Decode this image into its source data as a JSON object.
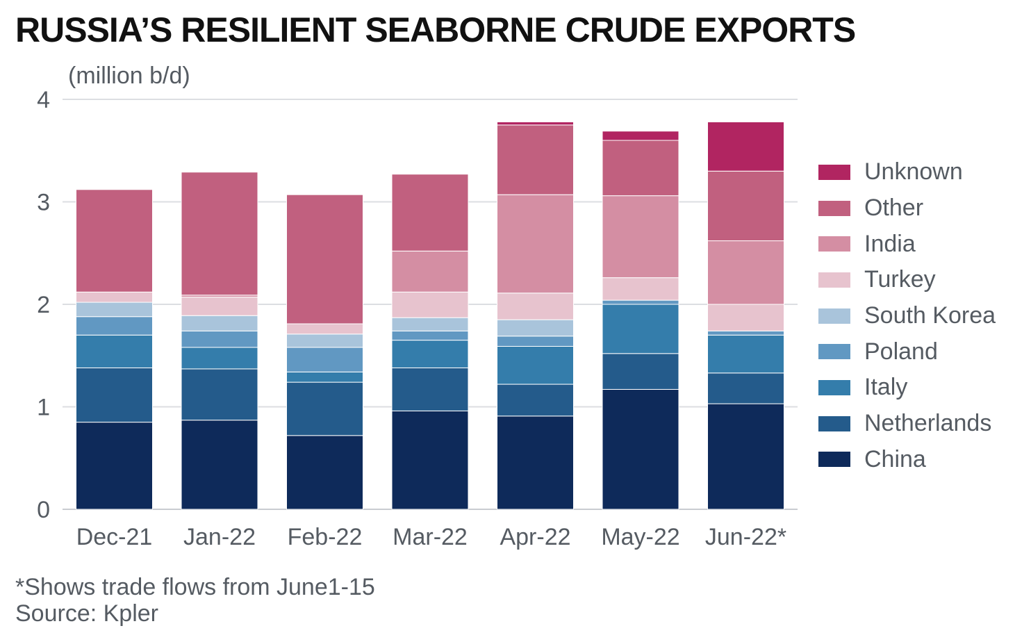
{
  "title": "RUSSIA’S RESILIENT SEABORNE CRUDE EXPORTS",
  "footnote": "*Shows trade flows from June1-15",
  "source": "Source: Kpler",
  "chart_data": {
    "type": "bar",
    "stacked": true,
    "ylabel": "(million b/d)",
    "ylim": [
      0,
      4
    ],
    "yticks": [
      0,
      1,
      2,
      3,
      4
    ],
    "grid": true,
    "legend_position": "right",
    "categories": [
      "Dec-21",
      "Jan-22",
      "Feb-22",
      "Mar-22",
      "Apr-22",
      "May-22",
      "Jun-22*"
    ],
    "series": [
      {
        "name": "China",
        "color": "#0e2a5a",
        "values": [
          0.85,
          0.87,
          0.72,
          0.96,
          0.91,
          1.17,
          1.03
        ]
      },
      {
        "name": "Netherlands",
        "color": "#245b8b",
        "values": [
          0.53,
          0.5,
          0.52,
          0.42,
          0.31,
          0.35,
          0.3
        ]
      },
      {
        "name": "Italy",
        "color": "#347dab",
        "values": [
          0.32,
          0.21,
          0.1,
          0.27,
          0.37,
          0.48,
          0.37
        ]
      },
      {
        "name": "Poland",
        "color": "#6198c2",
        "values": [
          0.18,
          0.16,
          0.24,
          0.09,
          0.1,
          0.04,
          0.04
        ]
      },
      {
        "name": "South Korea",
        "color": "#a9c4db",
        "values": [
          0.14,
          0.15,
          0.13,
          0.13,
          0.16,
          0.0,
          0.0
        ]
      },
      {
        "name": "Turkey",
        "color": "#e7c3ce",
        "values": [
          0.1,
          0.18,
          0.1,
          0.25,
          0.26,
          0.22,
          0.26
        ]
      },
      {
        "name": "India",
        "color": "#d48ea3",
        "values": [
          0.0,
          0.02,
          0.0,
          0.4,
          0.96,
          0.8,
          0.62
        ]
      },
      {
        "name": "Other",
        "color": "#c1607f",
        "values": [
          1.0,
          1.2,
          1.26,
          0.75,
          0.68,
          0.54,
          0.68
        ]
      },
      {
        "name": "Unknown",
        "color": "#b12561",
        "values": [
          0.0,
          0.0,
          0.0,
          0.0,
          0.03,
          0.09,
          0.48
        ]
      }
    ]
  }
}
